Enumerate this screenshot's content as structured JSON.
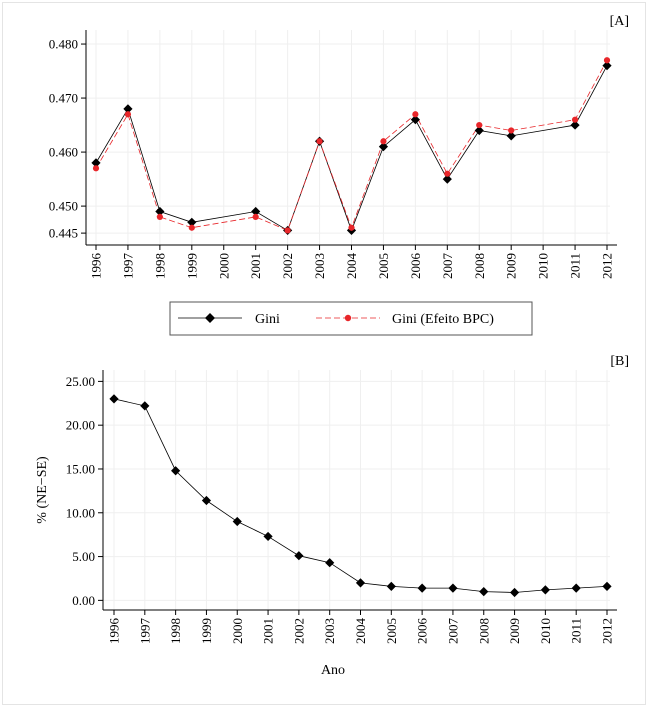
{
  "chart_data": [
    {
      "type": "line",
      "panel_label": "[A]",
      "x": [
        1996,
        1997,
        1998,
        1999,
        2000,
        2001,
        2002,
        2003,
        2004,
        2005,
        2006,
        2007,
        2008,
        2009,
        2010,
        2011,
        2012
      ],
      "x_ticks": [
        "1996",
        "1997",
        "1998",
        "1999",
        "2000",
        "2001",
        "2002",
        "2003",
        "2004",
        "2005",
        "2006",
        "2007",
        "2008",
        "2009",
        "2010",
        "2011",
        "2012"
      ],
      "series": [
        {
          "name": "Gini",
          "color": "#000000",
          "marker": "diamond",
          "line_style": "solid",
          "x": [
            1996,
            1997,
            1998,
            1999,
            2001,
            2002,
            2003,
            2004,
            2005,
            2006,
            2007,
            2008,
            2009,
            2011,
            2012
          ],
          "values": [
            0.458,
            0.468,
            0.449,
            0.447,
            0.449,
            0.4455,
            0.462,
            0.4455,
            0.461,
            0.466,
            0.455,
            0.464,
            0.463,
            0.465,
            0.476
          ]
        },
        {
          "name": "Gini (Efeito BPC)",
          "color": "#e8262a",
          "marker": "circle",
          "line_style": "dashed",
          "x": [
            1996,
            1997,
            1998,
            1999,
            2001,
            2002,
            2003,
            2004,
            2005,
            2006,
            2007,
            2008,
            2009,
            2011,
            2012
          ],
          "values": [
            0.457,
            0.467,
            0.448,
            0.446,
            0.448,
            0.4455,
            0.462,
            0.446,
            0.462,
            0.467,
            0.456,
            0.465,
            0.464,
            0.466,
            0.477
          ]
        }
      ],
      "y_ticks": [
        0.445,
        0.45,
        0.46,
        0.47,
        0.48
      ],
      "y_tick_labels": [
        "0.445",
        "0.450",
        "0.460",
        "0.470",
        "0.480"
      ],
      "ylim": [
        0.4428,
        0.4826
      ],
      "xlabel": "",
      "ylabel": "",
      "grid": true,
      "legend_position": "bottom"
    },
    {
      "type": "line",
      "panel_label": "[B]",
      "x": [
        1996,
        1997,
        1998,
        1999,
        2000,
        2001,
        2002,
        2003,
        2004,
        2005,
        2006,
        2007,
        2008,
        2009,
        2010,
        2011,
        2012
      ],
      "x_ticks": [
        "1996",
        "1997",
        "1998",
        "1999",
        "2000",
        "2001",
        "2002",
        "2003",
        "2004",
        "2005",
        "2006",
        "2007",
        "2008",
        "2009",
        "2010",
        "2011",
        "2012"
      ],
      "series": [
        {
          "name": "% (NE−SE)",
          "color": "#000000",
          "marker": "diamond",
          "line_style": "solid",
          "x": [
            1996,
            1997,
            1998,
            1999,
            2000,
            2001,
            2002,
            2003,
            2004,
            2005,
            2006,
            2007,
            2008,
            2009,
            2010,
            2011,
            2012
          ],
          "values": [
            23.0,
            22.2,
            14.8,
            11.4,
            9.0,
            7.3,
            5.1,
            4.3,
            2.0,
            1.6,
            1.4,
            1.4,
            1.0,
            0.9,
            1.2,
            1.4,
            1.6
          ]
        }
      ],
      "y_ticks": [
        0,
        5,
        10,
        15,
        20,
        25
      ],
      "y_tick_labels": [
        "0.00",
        "5.00",
        "10.00",
        "15.00",
        "20.00",
        "25.00"
      ],
      "ylim": [
        -1.1,
        26.3
      ],
      "xlabel": "Ano",
      "ylabel": "% (NE−SE)",
      "grid": true
    }
  ]
}
